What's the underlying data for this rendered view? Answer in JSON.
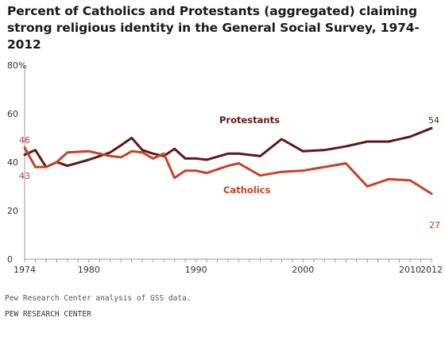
{
  "title": "Percent of Catholics and Protestants (aggregated) claiming strong religious identity in the General Social Survey, 1974-2012",
  "source_note": "Pew Research Center analysis of GSS data.",
  "organization": "PEW RESEARCH CENTER",
  "colors": {
    "protestants": "#5e1914",
    "catholics": "#c84128",
    "axis": "#999999",
    "grid": "#dddddd"
  },
  "chart_data": {
    "type": "line",
    "title": "Percent of Catholics and Protestants (aggregated) claiming strong religious identity in the General Social Survey, 1974-2012",
    "xlabel": "",
    "ylabel": "",
    "xlim": [
      1974,
      2012
    ],
    "ylim": [
      0,
      80
    ],
    "y_ticks": [
      0,
      20,
      40,
      60,
      80
    ],
    "y_tick_labels": [
      "0",
      "20",
      "40",
      "60",
      "80%"
    ],
    "x_ticks": [
      1974,
      1980,
      1990,
      2000,
      2010,
      2012
    ],
    "x_tick_labels": [
      "1974",
      "1980",
      "1990",
      "2000",
      "2010",
      "2012"
    ],
    "grid": false,
    "series": [
      {
        "name": "Protestants",
        "x": [
          1974,
          1975,
          1976,
          1977,
          1978,
          1980,
          1982,
          1983,
          1984,
          1985,
          1986,
          1987,
          1988,
          1989,
          1990,
          1991,
          1993,
          1994,
          1996,
          1998,
          2000,
          2002,
          2004,
          2006,
          2008,
          2010,
          2012
        ],
        "values": [
          43,
          45,
          38,
          40,
          38.5,
          41,
          44,
          47,
          50,
          45,
          43.5,
          42.5,
          45.5,
          41.5,
          41.5,
          41,
          43.5,
          43.5,
          42.5,
          49.5,
          44.5,
          45,
          46.5,
          48.5,
          48.5,
          50.5,
          54
        ],
        "end_label": "54"
      },
      {
        "name": "Catholics",
        "x": [
          1974,
          1975,
          1976,
          1977,
          1978,
          1980,
          1982,
          1983,
          1984,
          1985,
          1986,
          1987,
          1988,
          1989,
          1990,
          1991,
          1993,
          1994,
          1996,
          1998,
          2000,
          2002,
          2004,
          2006,
          2008,
          2010,
          2012
        ],
        "values": [
          46,
          38,
          38,
          40,
          44,
          44.5,
          42.5,
          42,
          44.5,
          44,
          41.5,
          43.5,
          33.5,
          36.5,
          36.5,
          35.5,
          38.5,
          39.5,
          34.5,
          36,
          36.5,
          38,
          39.5,
          30,
          33,
          32.5,
          27
        ],
        "start_label": "46",
        "end_label": "27"
      }
    ],
    "start_labels": [
      "46",
      "43"
    ]
  }
}
